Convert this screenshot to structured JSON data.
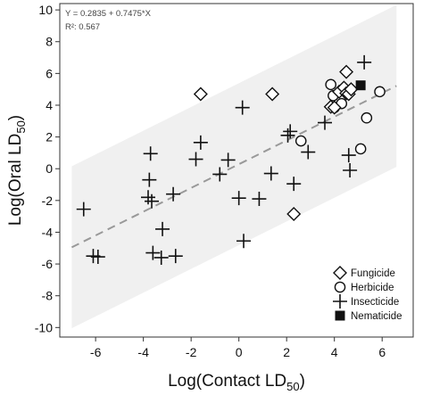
{
  "chart_data": {
    "type": "scatter",
    "xlabel": "Log(Contact LD",
    "xlabel_sub": "50",
    "xlabel_close": ")",
    "ylabel": "Log(Oral LD",
    "ylabel_sub": "50",
    "ylabel_close": ")",
    "xlim": [
      -7.5,
      7.3
    ],
    "ylim": [
      -10.6,
      10.4
    ],
    "xticks": [
      -6,
      -4,
      -2,
      0,
      2,
      4,
      6
    ],
    "yticks": [
      -10,
      -8,
      -6,
      -4,
      -2,
      0,
      2,
      4,
      6,
      8,
      10
    ],
    "grid": false,
    "legend_position": "bottom-right",
    "annotations": {
      "equation": "Y = 0.2835 + 0.7475*X",
      "r2_label": "R²: 0.567"
    },
    "fit": {
      "type": "dashed-line",
      "intercept": 0.2835,
      "slope": 0.7475,
      "x_range": [
        -7,
        6.6
      ],
      "color": "#999999"
    },
    "prediction_band": {
      "color": "#f0f0f0",
      "x_range": [
        -7,
        6.6
      ],
      "half_width": 5.1
    },
    "series": [
      {
        "name": "Fungicide",
        "marker": "diamond",
        "points": [
          [
            -1.6,
            4.7
          ],
          [
            1.4,
            4.7
          ],
          [
            2.3,
            -2.85
          ],
          [
            3.85,
            3.9
          ],
          [
            4.0,
            3.85
          ],
          [
            4.2,
            4.85
          ],
          [
            4.4,
            5.1
          ],
          [
            4.5,
            6.1
          ],
          [
            4.5,
            4.75
          ],
          [
            4.6,
            4.7
          ],
          [
            4.7,
            5.0
          ]
        ]
      },
      {
        "name": "Herbicide",
        "marker": "circle",
        "points": [
          [
            2.6,
            1.75
          ],
          [
            3.85,
            5.3
          ],
          [
            3.95,
            4.6
          ],
          [
            4.0,
            3.85
          ],
          [
            4.3,
            4.1
          ],
          [
            4.6,
            4.8
          ],
          [
            5.1,
            1.25
          ],
          [
            5.35,
            3.2
          ],
          [
            5.9,
            4.85
          ]
        ]
      },
      {
        "name": "Insecticide",
        "marker": "plus",
        "points": [
          [
            -6.5,
            -2.55
          ],
          [
            -6.1,
            -5.5
          ],
          [
            -5.9,
            -5.55
          ],
          [
            -3.7,
            0.95
          ],
          [
            -3.75,
            -0.7
          ],
          [
            -3.8,
            -1.8
          ],
          [
            -3.65,
            -2.05
          ],
          [
            -3.6,
            -5.3
          ],
          [
            -3.2,
            -3.8
          ],
          [
            -3.25,
            -5.6
          ],
          [
            -2.75,
            -1.6
          ],
          [
            -2.65,
            -5.5
          ],
          [
            -1.8,
            0.6
          ],
          [
            -1.6,
            1.65
          ],
          [
            -0.8,
            -0.35
          ],
          [
            -0.45,
            0.55
          ],
          [
            0.0,
            -1.85
          ],
          [
            0.15,
            3.85
          ],
          [
            0.2,
            -4.55
          ],
          [
            0.85,
            -1.9
          ],
          [
            1.35,
            -0.3
          ],
          [
            2.05,
            2.1
          ],
          [
            2.15,
            2.35
          ],
          [
            2.3,
            -0.95
          ],
          [
            2.9,
            1.05
          ],
          [
            3.6,
            2.9
          ],
          [
            4.6,
            0.85
          ],
          [
            4.65,
            -0.1
          ],
          [
            5.25,
            6.7
          ]
        ]
      },
      {
        "name": "Nematicide",
        "marker": "square",
        "points": [
          [
            5.1,
            5.25
          ]
        ]
      }
    ]
  }
}
